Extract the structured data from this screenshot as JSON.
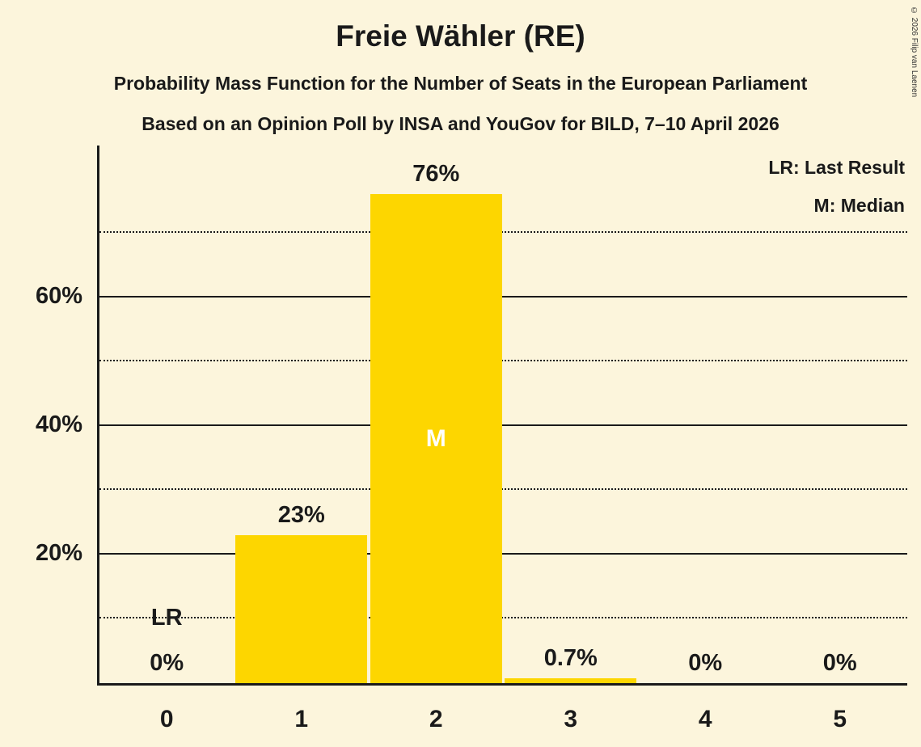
{
  "title": "Freie Wähler (RE)",
  "subtitle1": "Probability Mass Function for the Number of Seats in the European Parliament",
  "subtitle2": "Based on an Opinion Poll by INSA and YouGov for BILD, 7–10 April 2026",
  "legend": {
    "lr": "LR: Last Result",
    "m": "M: Median"
  },
  "copyright": "© 2026 Filip van Laenen",
  "colors": {
    "background": "#FCF5DC",
    "bar": "#FDD600",
    "text": "#1A1A1A",
    "median_label": "#FFFFFF"
  },
  "chart_data": {
    "type": "bar",
    "title": "Freie Wähler (RE)",
    "xlabel": "Number of Seats",
    "ylabel": "Probability",
    "categories": [
      "0",
      "1",
      "2",
      "3",
      "4",
      "5"
    ],
    "values": [
      0,
      23,
      76,
      0.7,
      0,
      0
    ],
    "bar_labels": [
      "0%",
      "23%",
      "76%",
      "0.7%",
      "0%",
      "0%"
    ],
    "median_category_index": 2,
    "median_marker": "M",
    "last_result_category_index": 0,
    "last_result_marker": "LR",
    "y_tick_labels": [
      "20%",
      "40%",
      "60%"
    ],
    "y_tick_values": [
      20,
      40,
      60
    ],
    "solid_gridlines": [
      20,
      40,
      60
    ],
    "dotted_gridlines": [
      10,
      30,
      50,
      70
    ],
    "ylim": [
      0,
      83.6
    ],
    "grid": true,
    "legend_position": "top-right"
  }
}
